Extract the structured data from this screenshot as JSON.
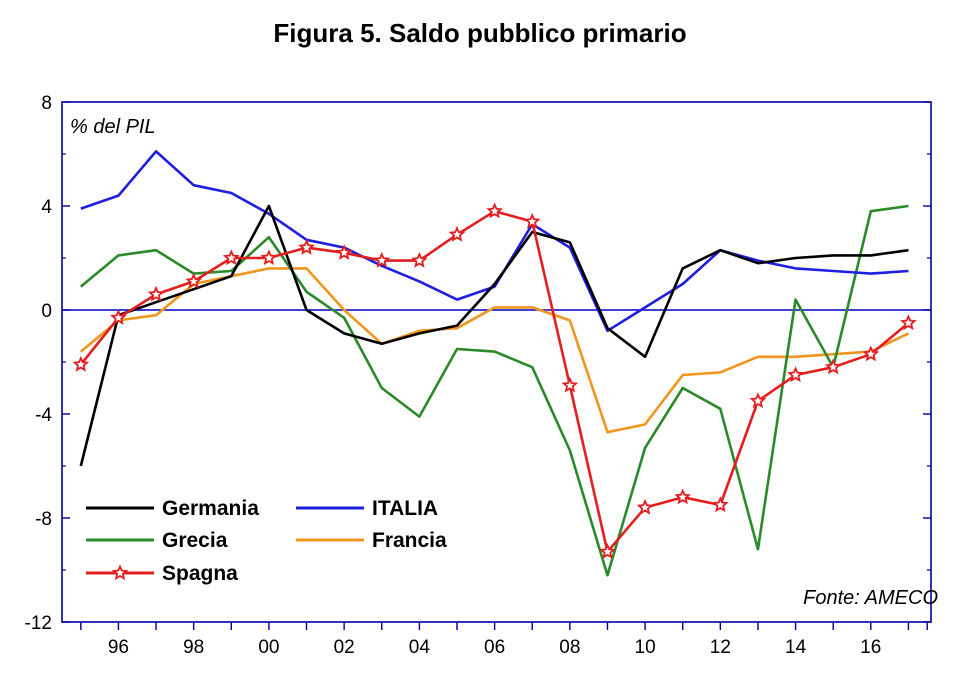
{
  "title": "Figura 5. Saldo pubblico primario",
  "ylabel_note": "% del PIL",
  "source_note": "Fonte: AMECO",
  "colors": {
    "axis": "#0000a0",
    "zero_line": "#0000c0",
    "Germania": "#000000",
    "ITALIA": "#1f1fe0",
    "Grecia": "#2a8a2a",
    "Francia": "#f0961e",
    "Spagna": "#e41e1e"
  },
  "chart_data": {
    "type": "line",
    "title": "Figura 5. Saldo pubblico primario",
    "ylabel": "% del PIL",
    "x": [
      1995,
      1996,
      1997,
      1998,
      1999,
      2000,
      2001,
      2002,
      2003,
      2004,
      2005,
      2006,
      2007,
      2008,
      2009,
      2010,
      2011,
      2012,
      2013,
      2014,
      2015,
      2016,
      2017
    ],
    "x_tick_values": [
      1996,
      1998,
      2000,
      2002,
      2004,
      2006,
      2008,
      2010,
      2012,
      2014,
      2016
    ],
    "x_tick_labels": [
      "96",
      "98",
      "00",
      "02",
      "04",
      "06",
      "08",
      "10",
      "12",
      "14",
      "16"
    ],
    "xlim": [
      1994.5,
      2017.6
    ],
    "ylim": [
      -12,
      8
    ],
    "y_ticks": [
      -12,
      -8,
      -4,
      0,
      4,
      8
    ],
    "grid": false,
    "legend_placement": "bottom-left",
    "series": [
      {
        "name": "Germania",
        "values": [
          -6.0,
          -0.2,
          0.3,
          0.8,
          1.3,
          4.0,
          0.0,
          -0.9,
          -1.3,
          -0.9,
          -0.6,
          1.0,
          3.0,
          2.6,
          -0.7,
          -1.8,
          1.6,
          2.3,
          1.8,
          2.0,
          2.1,
          2.1,
          2.3
        ]
      },
      {
        "name": "ITALIA",
        "values": [
          3.9,
          4.4,
          6.1,
          4.8,
          4.5,
          3.7,
          2.7,
          2.4,
          1.7,
          1.1,
          0.4,
          0.9,
          3.3,
          2.4,
          -0.8,
          0.1,
          1.0,
          2.3,
          1.9,
          1.6,
          1.5,
          1.4,
          1.5
        ]
      },
      {
        "name": "Grecia",
        "values": [
          0.9,
          2.1,
          2.3,
          1.4,
          1.5,
          2.8,
          0.7,
          -0.3,
          -3.0,
          -4.1,
          -1.5,
          -1.6,
          -2.2,
          -5.4,
          -10.2,
          -5.3,
          -3.0,
          -3.8,
          -9.2,
          0.4,
          -2.2,
          3.8,
          4.0
        ]
      },
      {
        "name": "Francia",
        "values": [
          -1.6,
          -0.4,
          -0.2,
          1.0,
          1.3,
          1.6,
          1.6,
          0.0,
          -1.3,
          -0.8,
          -0.7,
          0.1,
          0.1,
          -0.4,
          -4.7,
          -4.4,
          -2.5,
          -2.4,
          -1.8,
          -1.8,
          -1.7,
          -1.6,
          -0.9
        ]
      },
      {
        "name": "Spagna",
        "values": [
          -2.1,
          -0.3,
          0.6,
          1.1,
          2.0,
          2.0,
          2.4,
          2.2,
          1.9,
          1.9,
          2.9,
          3.8,
          3.4,
          -2.9,
          -9.3,
          -7.6,
          -7.2,
          -7.5,
          -3.5,
          -2.5,
          -2.2,
          -1.7,
          -0.5
        ],
        "marker": "star"
      }
    ],
    "legend": [
      "Germania",
      "ITALIA",
      "Grecia",
      "Francia",
      "Spagna"
    ],
    "annotations": [
      "% del PIL",
      "Fonte: AMECO"
    ]
  }
}
